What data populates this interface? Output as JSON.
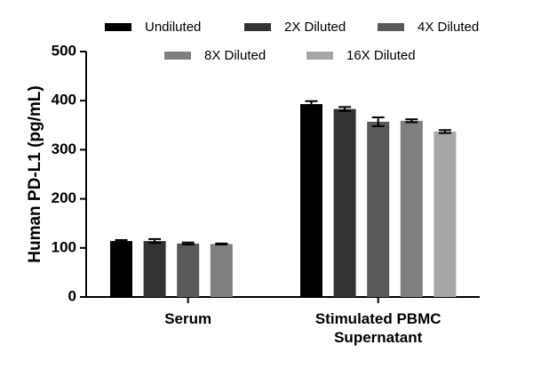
{
  "chart_data": {
    "type": "bar",
    "y_label": "Human PD-L1 (pg/mL)",
    "categories": [
      "Serum",
      "Stimulated PBMC Supernatant"
    ],
    "series": [
      {
        "name": "Undiluted",
        "color": "#000000",
        "values": [
          114,
          393
        ],
        "errors": [
          2,
          6
        ]
      },
      {
        "name": "2X Diluted",
        "color": "#333333",
        "values": [
          114,
          383
        ],
        "errors": [
          4,
          4
        ]
      },
      {
        "name": "4X Diluted",
        "color": "#595959",
        "values": [
          109,
          357
        ],
        "errors": [
          2,
          9
        ]
      },
      {
        "name": "8X Diluted",
        "color": "#7f7f7f",
        "values": [
          108,
          359
        ],
        "errors": [
          1,
          3
        ]
      },
      {
        "name": "16X Diluted",
        "color": "#a6a6a6",
        "values": [
          null,
          337
        ],
        "errors": [
          null,
          3
        ]
      }
    ],
    "ylim": [
      0,
      500
    ],
    "yticks": [
      0,
      100,
      200,
      300,
      400,
      500
    ]
  }
}
